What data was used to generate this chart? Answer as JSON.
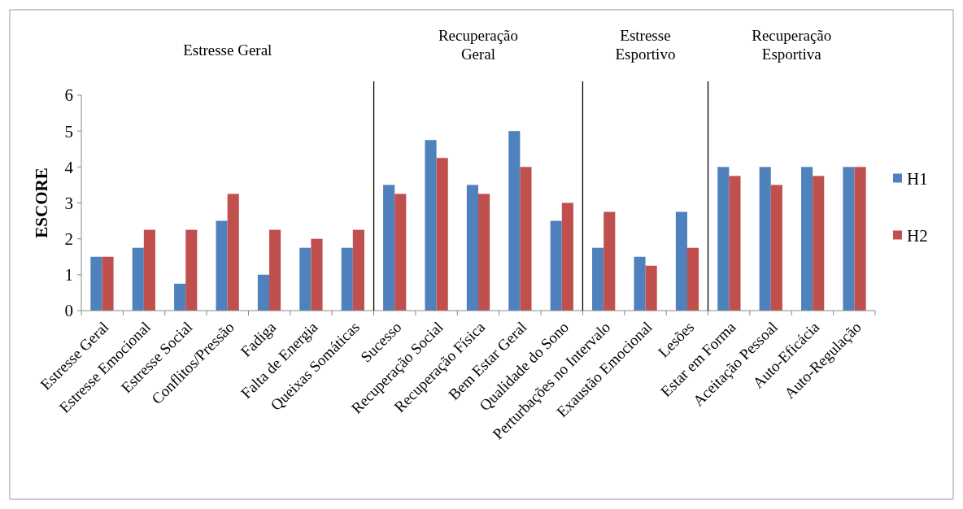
{
  "chart_data": {
    "type": "bar",
    "ylabel": "ESCORE",
    "categories": [
      "Estresse Geral",
      "Estresse Emocional",
      "Estresse Social",
      "Conflitos/Pressão",
      "Fadiga",
      "Falta de Energia",
      "Queixas Somáticas",
      "Sucesso",
      "Recuperação Social",
      "Recuperação Física",
      "Bem Estar Geral",
      "Qualidade do Sono",
      "Perturbações no Intervalo",
      "Exaustão Emocional",
      "Lesões",
      "Estar em Forma",
      "Aceitação Pessoal",
      "Auto-Eficácia",
      "Auto-Regulação"
    ],
    "series": [
      {
        "name": "H1",
        "color": "#4f81bd",
        "values": [
          1.5,
          1.75,
          0.75,
          2.5,
          1,
          1.75,
          1.75,
          3.5,
          4.75,
          3.5,
          5,
          2.5,
          1.75,
          1.5,
          2.75,
          4,
          4,
          4,
          4
        ]
      },
      {
        "name": "H2",
        "color": "#c0504d",
        "values": [
          1.5,
          2.25,
          2.25,
          3.25,
          2.25,
          2,
          2.25,
          3.25,
          4.25,
          3.25,
          4,
          3,
          2.75,
          1.25,
          1.75,
          3.75,
          3.5,
          3.75,
          4
        ]
      }
    ],
    "ylim": [
      0,
      6
    ],
    "yticks": [
      0,
      1,
      2,
      3,
      4,
      5,
      6
    ],
    "grid": false,
    "legend": "right",
    "annotations": [
      "Estresse Geral",
      "Recuperação Geral",
      "Estresse Esportivo",
      "Recuperação Esportiva"
    ]
  }
}
